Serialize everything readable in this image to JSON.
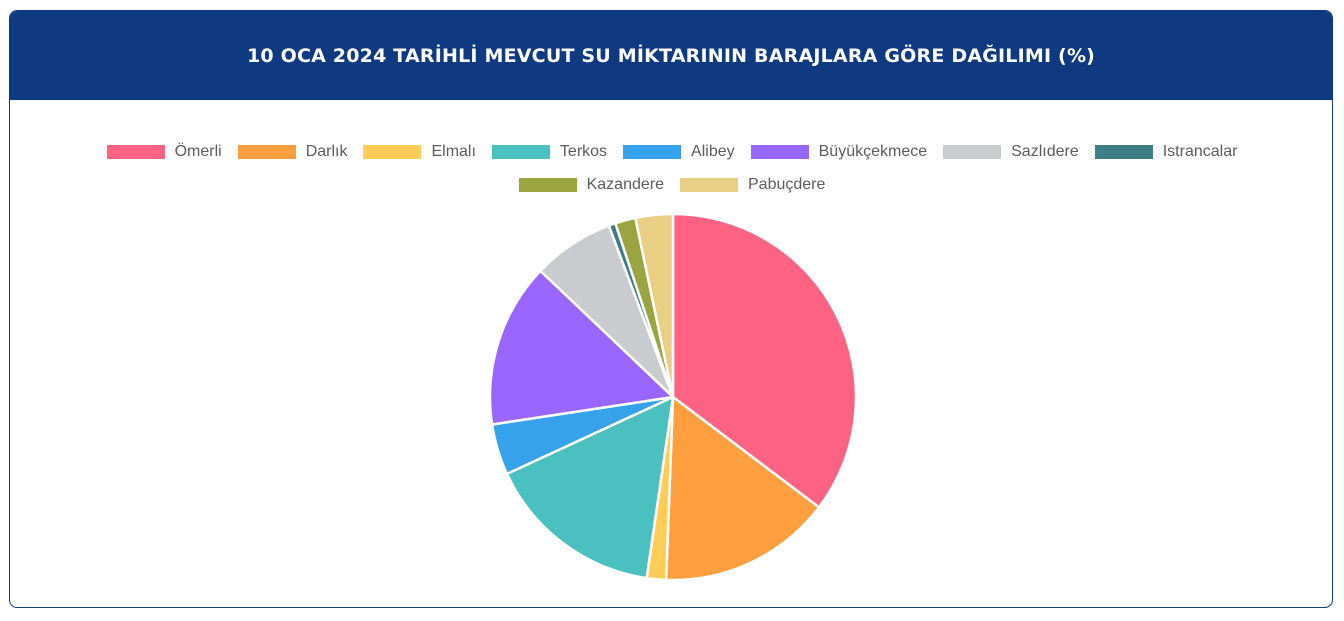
{
  "header": {
    "title": "10 OCA 2024 TARİHLİ MEVCUT SU MİKTARININ BARAJLARA GÖRE DAĞILIMI (%)"
  },
  "chart_data": {
    "type": "pie",
    "title": "10 OCA 2024 TARİHLİ MEVCUT SU MİKTARININ BARAJLARA GÖRE DAĞILIMI (%)",
    "legend_position": "top",
    "slices": [
      {
        "label": "Ömerli",
        "value": 35.3,
        "color": "#ff6384"
      },
      {
        "label": "Darlık",
        "value": 15.3,
        "color": "#ff9f40"
      },
      {
        "label": "Elmalı",
        "value": 1.7,
        "color": "#ffcd56"
      },
      {
        "label": "Terkos",
        "value": 15.8,
        "color": "#4bc0c0"
      },
      {
        "label": "Alibey",
        "value": 4.5,
        "color": "#36a2eb"
      },
      {
        "label": "Büyükçekmece",
        "value": 14.5,
        "color": "#9966ff"
      },
      {
        "label": "Sazlıdere",
        "value": 7.2,
        "color": "#c9cbcf"
      },
      {
        "label": "Istrancalar",
        "value": 0.6,
        "color": "#3d7d84"
      },
      {
        "label": "Kazandere",
        "value": 1.8,
        "color": "#9aa440"
      },
      {
        "label": "Pabuçdere",
        "value": 3.3,
        "color": "#e8cf83"
      }
    ]
  }
}
